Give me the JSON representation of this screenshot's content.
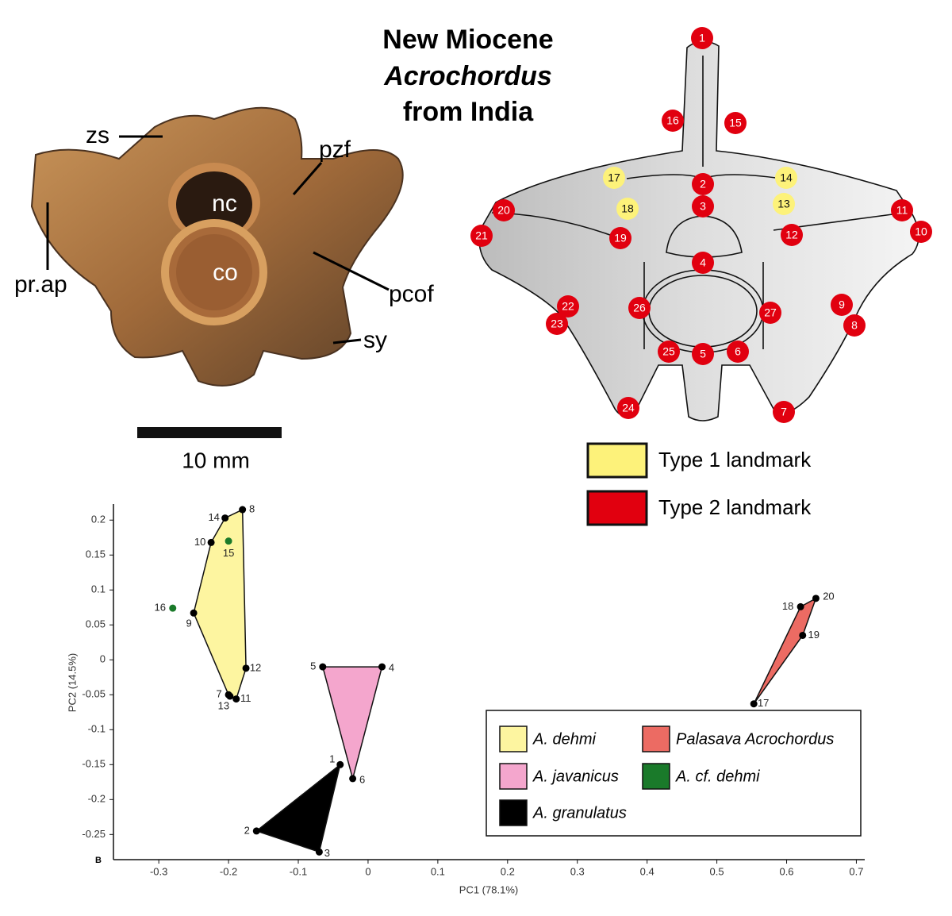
{
  "title": {
    "line1": "New Miocene",
    "line2": "Acrochordus",
    "line3": "from India"
  },
  "photo_labels": [
    "zs",
    "pzf",
    "nc",
    "co",
    "pr.ap",
    "pcof",
    "sy"
  ],
  "scale_bar": "10 mm",
  "landmark_legend": [
    {
      "label": "Type 1 landmark",
      "color": "#fdf27a",
      "landmarks": [
        14,
        13,
        17,
        18
      ]
    },
    {
      "label": "Type 2 landmark",
      "color": "#e1000f",
      "landmarks": [
        1,
        2,
        3,
        4,
        5,
        6,
        7,
        8,
        9,
        10,
        11,
        12,
        15,
        16,
        19,
        20,
        21,
        22,
        23,
        24,
        25,
        26,
        27
      ]
    }
  ],
  "chart_data": {
    "type": "scatter",
    "panel": "B",
    "x_label": "PC1 (78.1%)",
    "y_label": "PC2 (14.5%)",
    "xlim": [
      -0.365,
      0.712
    ],
    "ylim": [
      -0.286,
      0.223
    ],
    "xticks": [
      -0.3,
      -0.2,
      -0.1,
      0,
      0.1,
      0.2,
      0.3,
      0.4,
      0.5,
      0.6,
      0.7
    ],
    "yticks": [
      0.2,
      0.15,
      0.1,
      0.05,
      0,
      -0.05,
      -0.1,
      -0.15,
      -0.2,
      -0.25
    ],
    "grid": false,
    "series": [
      {
        "name": "A. dehmi",
        "color": "#fdf5a0",
        "marker_color": "#000000",
        "labels": [
          7,
          8,
          9,
          10,
          11,
          12,
          13,
          14
        ],
        "x": [
          -0.2,
          -0.18,
          -0.25,
          -0.225,
          -0.189,
          -0.175,
          -0.198,
          -0.205
        ],
        "y": [
          -0.05,
          0.215,
          0.067,
          0.168,
          -0.056,
          -0.012,
          -0.052,
          0.203
        ]
      },
      {
        "name": "Palasava Acrochordus",
        "color": "#ec6b63",
        "marker_color": "#000000",
        "labels": [
          17,
          18,
          19,
          20
        ],
        "x": [
          0.553,
          0.62,
          0.623,
          0.642
        ],
        "y": [
          -0.063,
          0.076,
          0.035,
          0.088
        ]
      },
      {
        "name": "A. javanicus",
        "color": "#f4a6cd",
        "marker_color": "#000000",
        "labels": [
          4,
          5,
          6
        ],
        "x": [
          0.02,
          -0.065,
          -0.022
        ],
        "y": [
          -0.01,
          -0.01,
          -0.17
        ]
      },
      {
        "name": "A. cf. dehmi",
        "color": "#1a7a2a",
        "marker_color": "#1a7a2a",
        "labels": [
          15,
          16
        ],
        "x": [
          -0.2,
          -0.28
        ],
        "y": [
          0.17,
          0.074
        ]
      },
      {
        "name": "A. granulatus",
        "color": "#000000",
        "marker_color": "#000000",
        "labels": [
          1,
          2,
          3
        ],
        "x": [
          -0.04,
          -0.16,
          -0.07
        ],
        "y": [
          -0.15,
          -0.245,
          -0.275
        ]
      }
    ]
  }
}
